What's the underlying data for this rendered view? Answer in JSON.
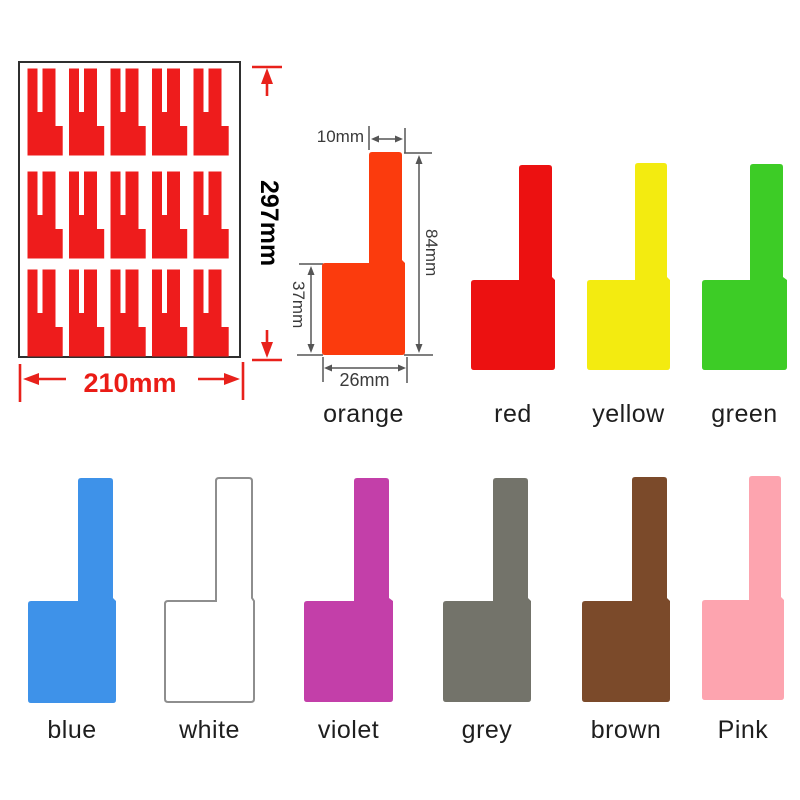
{
  "title": "cable label colors and dimensions infographic",
  "sheet": {
    "width_text": "210mm",
    "height_text": "297mm",
    "rows": 3,
    "cols": 5,
    "stickers_per_sheet": 15,
    "sticker_color": "#ee1c1c",
    "border_color": "#2f2f2f",
    "dim_color": "#e8211b",
    "height_text_color": "#e6352c"
  },
  "spec": {
    "tab_width_text": "10mm",
    "total_height_text": "84mm",
    "base_height_text": "37mm",
    "base_width_text": "26mm",
    "annotation_line_color": "#555555",
    "annotation_text_color": "#3a3a3a"
  },
  "labels": [
    {
      "name": "orange",
      "fill": "#fb3b0d"
    },
    {
      "name": "red",
      "fill": "#ec1111"
    },
    {
      "name": "yellow",
      "fill": "#f3eb10"
    },
    {
      "name": "green",
      "fill": "#3dcc26"
    },
    {
      "name": "blue",
      "fill": "#3e92e9"
    },
    {
      "name": "white",
      "fill": "#ffffff",
      "stroke": "#8e8e8e"
    },
    {
      "name": "violet",
      "fill": "#c33fa9"
    },
    {
      "name": "grey",
      "fill": "#73736a"
    },
    {
      "name": "brown",
      "fill": "#7b4a2a"
    },
    {
      "name": "Pink",
      "fill": "#fda4af"
    }
  ]
}
